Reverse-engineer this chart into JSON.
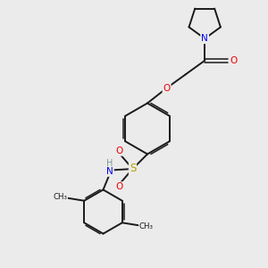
{
  "background_color": "#ebebeb",
  "bond_color": "#1a1a1a",
  "atom_colors": {
    "N": "#0000ee",
    "O": "#ee0000",
    "S": "#b8a000",
    "H": "#7a9a9a",
    "C": "#1a1a1a"
  },
  "figsize": [
    3.0,
    3.0
  ],
  "dpi": 100,
  "xlim": [
    0,
    10
  ],
  "ylim": [
    0,
    10
  ]
}
